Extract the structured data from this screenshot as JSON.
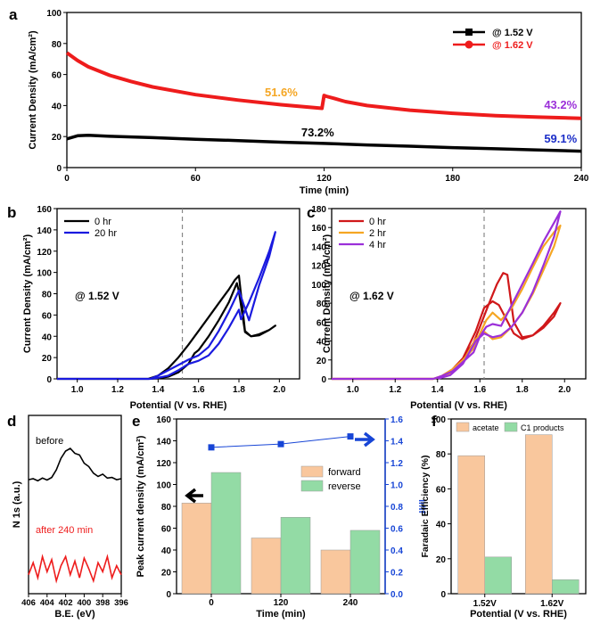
{
  "colors": {
    "black": "#000000",
    "red": "#ee1c1c",
    "blue": "#1a1adf",
    "orange": "#f5a623",
    "purple": "#9b30d9",
    "dark_red": "#d0181a",
    "bar_orange": "#f9c79d",
    "bar_green": "#93dba5",
    "eblue": "#1745d6",
    "ann_blue": "#1c2ec8"
  },
  "chart_data": [
    {
      "id": "a",
      "type": "line",
      "label": "a",
      "xlabel": "Time (min)",
      "ylabel": "Current Density (mA/cm²)",
      "xlim": [
        0,
        240
      ],
      "ylim": [
        0,
        100
      ],
      "xticks": [
        "0",
        "60",
        "120",
        "180",
        "240"
      ],
      "yticks": [
        "0",
        "20",
        "40",
        "60",
        "80",
        "100"
      ],
      "legend": [
        "@ 1.52 V",
        "@ 1.62 V"
      ],
      "series": [
        {
          "name": "@ 1.52 V",
          "color": "black",
          "x": [
            0,
            5,
            10,
            20,
            40,
            60,
            80,
            100,
            120,
            140,
            160,
            180,
            200,
            220,
            240
          ],
          "y": [
            18.5,
            20.5,
            20.8,
            20.2,
            19.3,
            18.3,
            17.4,
            16.4,
            15.6,
            14.6,
            13.8,
            12.9,
            12.1,
            11.3,
            10.6
          ]
        },
        {
          "name": "@ 1.62 V",
          "color": "red",
          "x": [
            0,
            5,
            10,
            20,
            30,
            40,
            60,
            80,
            100,
            119,
            120,
            121,
            125,
            130,
            140,
            160,
            180,
            200,
            220,
            240
          ],
          "y": [
            74,
            69,
            65,
            59.5,
            55.5,
            52,
            47,
            43.5,
            40.5,
            38.2,
            46.5,
            46,
            44.5,
            42.5,
            40,
            37,
            35,
            33.5,
            32.5,
            31.8
          ]
        }
      ],
      "annotations": [
        {
          "text": "51.6%",
          "color": "orange",
          "x": 100,
          "y": 46
        },
        {
          "text": "43.2%",
          "color": "purple",
          "x": 238,
          "y": 38
        },
        {
          "text": "73.2%",
          "color": "black",
          "x": 117,
          "y": 20
        },
        {
          "text": "59.1%",
          "color": "ann_blue",
          "x": 238,
          "y": 16
        }
      ]
    },
    {
      "id": "b",
      "type": "line",
      "label": "b",
      "xlabel": "Potential (V vs. RHE)",
      "ylabel": "Current Density (mA/cm²)",
      "xlim": [
        0.9,
        2.1
      ],
      "ylim": [
        0,
        160
      ],
      "xticks": [
        "1.0",
        "1.2",
        "1.4",
        "1.6",
        "1.8",
        "2.0"
      ],
      "yticks": [
        "0",
        "20",
        "40",
        "60",
        "80",
        "100",
        "120",
        "140",
        "160"
      ],
      "vline": 1.52,
      "annotation": "@ 1.52 V",
      "legend": [
        "0 hr",
        "20 hr"
      ],
      "series": [
        {
          "name": "0 hr",
          "color": "black",
          "x": [
            0.9,
            1.35,
            1.4,
            1.45,
            1.5,
            1.55,
            1.6,
            1.65,
            1.7,
            1.75,
            1.78,
            1.8,
            1.83,
            1.86,
            1.9,
            1.95,
            1.98,
            1.95,
            1.9,
            1.86,
            1.83,
            1.8,
            1.79,
            1.75,
            1.7,
            1.65,
            1.6,
            1.58,
            1.55,
            1.5,
            1.45,
            1.4,
            1.35
          ],
          "y": [
            0,
            0,
            3,
            10,
            20,
            32,
            45,
            58,
            71,
            84,
            93,
            97,
            45,
            40,
            41,
            46,
            50,
            46,
            42,
            40,
            44,
            82,
            90,
            72,
            55,
            40,
            27,
            24,
            14,
            6,
            2,
            0.5,
            0
          ]
        },
        {
          "name": "20 hr",
          "color": "blue",
          "x": [
            0.9,
            1.36,
            1.4,
            1.45,
            1.5,
            1.55,
            1.6,
            1.65,
            1.7,
            1.75,
            1.8,
            1.85,
            1.9,
            1.95,
            1.98,
            1.95,
            1.9,
            1.85,
            1.81,
            1.8,
            1.75,
            1.7,
            1.65,
            1.6,
            1.55,
            1.5,
            1.45,
            1.4,
            1.36
          ],
          "y": [
            0,
            0,
            3,
            8,
            13,
            18,
            22,
            30,
            45,
            63,
            83,
            55,
            88,
            115,
            138,
            120,
            95,
            72,
            56,
            65,
            48,
            33,
            22,
            17,
            14,
            8,
            3,
            1,
            0
          ]
        }
      ]
    },
    {
      "id": "c",
      "type": "line",
      "label": "c",
      "xlabel": "Potential (V vs. RHE)",
      "ylabel": "Current Density (mA/cm²)",
      "xlim": [
        0.9,
        2.1
      ],
      "ylim": [
        0,
        180
      ],
      "xticks": [
        "1.0",
        "1.2",
        "1.4",
        "1.6",
        "1.8",
        "2.0"
      ],
      "yticks": [
        "0",
        "20",
        "40",
        "60",
        "80",
        "100",
        "120",
        "140",
        "160",
        "180"
      ],
      "vline": 1.62,
      "annotation": "@ 1.62 V",
      "legend": [
        "0 hr",
        "2 hr",
        "4 hr"
      ],
      "series": [
        {
          "name": "0 hr",
          "color": "dark_red",
          "x": [
            0.9,
            1.38,
            1.42,
            1.47,
            1.52,
            1.57,
            1.6,
            1.64,
            1.68,
            1.71,
            1.73,
            1.76,
            1.8,
            1.85,
            1.9,
            1.95,
            1.98,
            1.95,
            1.9,
            1.85,
            1.8,
            1.76,
            1.72,
            1.69,
            1.66,
            1.62,
            1.58,
            1.52,
            1.46,
            1.4
          ],
          "y": [
            0,
            0,
            3,
            10,
            22,
            38,
            55,
            78,
            100,
            112,
            110,
            60,
            44,
            46,
            56,
            70,
            80,
            66,
            54,
            46,
            42,
            48,
            65,
            78,
            82,
            75,
            50,
            22,
            6,
            0
          ]
        },
        {
          "name": "2 hr",
          "color": "orange",
          "x": [
            0.9,
            1.38,
            1.42,
            1.47,
            1.52,
            1.57,
            1.6,
            1.63,
            1.66,
            1.7,
            1.75,
            1.8,
            1.85,
            1.9,
            1.95,
            1.98,
            1.95,
            1.9,
            1.85,
            1.8,
            1.75,
            1.7,
            1.66,
            1.62,
            1.58,
            1.52,
            1.46,
            1.4
          ],
          "y": [
            0,
            0,
            3,
            10,
            20,
            32,
            48,
            62,
            70,
            62,
            75,
            95,
            118,
            140,
            155,
            162,
            140,
            115,
            90,
            70,
            55,
            44,
            42,
            50,
            42,
            18,
            5,
            0
          ]
        },
        {
          "name": "4 hr",
          "color": "purple",
          "x": [
            0.9,
            1.38,
            1.42,
            1.47,
            1.52,
            1.57,
            1.6,
            1.63,
            1.66,
            1.7,
            1.75,
            1.8,
            1.85,
            1.9,
            1.95,
            1.98,
            1.95,
            1.9,
            1.85,
            1.8,
            1.75,
            1.7,
            1.66,
            1.62,
            1.58,
            1.52,
            1.46,
            1.4
          ],
          "y": [
            0,
            0,
            3,
            8,
            18,
            28,
            45,
            55,
            58,
            56,
            78,
            100,
            122,
            145,
            165,
            177,
            150,
            120,
            92,
            70,
            55,
            46,
            44,
            48,
            40,
            16,
            4,
            0
          ]
        }
      ]
    },
    {
      "id": "d",
      "type": "line",
      "label": "d",
      "xlabel": "B.E. (eV)",
      "ylabel": "N 1s (a.u.)",
      "xlim": [
        406,
        396
      ],
      "xticks": [
        "406",
        "404",
        "402",
        "400",
        "398",
        "396"
      ],
      "curve_labels": [
        "before",
        "after 240 min"
      ],
      "series": [
        {
          "name": "before",
          "color": "black",
          "x": [
            406,
            405.5,
            405,
            404.5,
            404,
            403.5,
            403,
            402.5,
            402,
            401.5,
            401,
            400.5,
            400,
            399.5,
            399,
            398.5,
            398,
            397.5,
            397,
            396.5,
            396
          ],
          "y": [
            0.05,
            0.08,
            0.02,
            0.1,
            0.04,
            0.12,
            0.35,
            0.7,
            0.92,
            1.0,
            0.85,
            0.8,
            0.55,
            0.45,
            0.25,
            0.15,
            0.22,
            0.1,
            0.12,
            0.05,
            0.08
          ]
        },
        {
          "name": "after 240 min",
          "color": "red",
          "x": [
            406,
            405.5,
            405,
            404.5,
            404,
            403.5,
            403,
            402.5,
            402,
            401.5,
            401,
            400.5,
            400,
            399.5,
            399,
            398.5,
            398,
            397.5,
            397,
            396.5,
            396
          ],
          "y": [
            0.3,
            0.7,
            0.2,
            0.9,
            0.4,
            0.8,
            0.1,
            0.6,
            0.9,
            0.3,
            0.75,
            0.2,
            0.85,
            0.5,
            0.1,
            0.7,
            0.4,
            0.9,
            0.2,
            0.6,
            0.3
          ]
        }
      ]
    },
    {
      "id": "e",
      "type": "bar",
      "label": "e",
      "xlabel": "Time (min)",
      "ylabel": "Peak current density (mA/cm²)",
      "categories": [
        "0",
        "120",
        "240"
      ],
      "ylim": [
        0,
        160
      ],
      "yticks": [
        "0",
        "20",
        "40",
        "60",
        "80",
        "100",
        "120",
        "140",
        "160"
      ],
      "series": [
        {
          "name": "forward",
          "color": "bar_orange",
          "values": [
            83,
            51,
            40
          ]
        },
        {
          "name": "reverse",
          "color": "bar_green",
          "values": [
            111,
            70,
            58
          ]
        }
      ],
      "y2label": "Ir/If",
      "y2lim": [
        0,
        1.6
      ],
      "y2ticks": [
        "0.0",
        "0.2",
        "0.4",
        "0.6",
        "0.8",
        "1.0",
        "1.2",
        "1.4",
        "1.6"
      ],
      "ratio": [
        1.34,
        1.37,
        1.44
      ]
    },
    {
      "id": "f",
      "type": "bar",
      "label": "f",
      "xlabel": "Potential (V vs. RHE)",
      "ylabel": "Faradaic Efficiency (%)",
      "categories": [
        "1.52V",
        "1.62V"
      ],
      "ylim": [
        0,
        100
      ],
      "yticks": [
        "0",
        "20",
        "40",
        "60",
        "80",
        "100"
      ],
      "series": [
        {
          "name": "acetate",
          "color": "bar_orange",
          "values": [
            79,
            91
          ]
        },
        {
          "name": "C1 products",
          "color": "bar_green",
          "values": [
            21,
            8
          ]
        }
      ]
    }
  ]
}
